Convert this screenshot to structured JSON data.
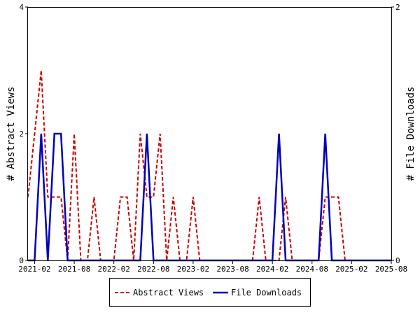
{
  "chart_data": {
    "type": "line",
    "x_unit": "month",
    "x": [
      "2021-01",
      "2021-02",
      "2021-03",
      "2021-04",
      "2021-05",
      "2021-06",
      "2021-07",
      "2021-08",
      "2021-09",
      "2021-10",
      "2021-11",
      "2021-12",
      "2022-01",
      "2022-02",
      "2022-03",
      "2022-04",
      "2022-05",
      "2022-06",
      "2022-07",
      "2022-08",
      "2022-09",
      "2022-10",
      "2022-11",
      "2022-12",
      "2023-01",
      "2023-02",
      "2023-03",
      "2023-04",
      "2023-05",
      "2023-06",
      "2023-07",
      "2023-08",
      "2023-09",
      "2023-10",
      "2023-11",
      "2023-12",
      "2024-01",
      "2024-02",
      "2024-03",
      "2024-04",
      "2024-05",
      "2024-06",
      "2024-07",
      "2024-08",
      "2024-09",
      "2024-10",
      "2024-11",
      "2024-12",
      "2025-01",
      "2025-02",
      "2025-03",
      "2025-04",
      "2025-05",
      "2025-06",
      "2025-07",
      "2025-08"
    ],
    "series": [
      {
        "name": "Abstract Views",
        "axis": "left",
        "color": "#cc0000",
        "style": "dashed",
        "values": [
          1,
          2,
          3,
          1,
          1,
          1,
          0,
          2,
          0,
          0,
          1,
          0,
          0,
          0,
          1,
          1,
          0,
          2,
          1,
          1,
          2,
          0,
          1,
          0,
          0,
          1,
          0,
          0,
          0,
          0,
          0,
          0,
          0,
          0,
          0,
          1,
          0,
          0,
          0,
          1,
          0,
          0,
          0,
          0,
          0,
          1,
          1,
          1,
          0,
          0,
          0,
          0,
          0,
          0,
          0,
          0
        ]
      },
      {
        "name": "File Downloads",
        "axis": "right",
        "color": "#0000bb",
        "style": "solid",
        "values": [
          0,
          0,
          1,
          0,
          1,
          1,
          0,
          0,
          0,
          0,
          0,
          0,
          0,
          0,
          0,
          0,
          0,
          0,
          1,
          0,
          0,
          0,
          0,
          0,
          0,
          0,
          0,
          0,
          0,
          0,
          0,
          0,
          0,
          0,
          0,
          0,
          0,
          0,
          1,
          0,
          0,
          0,
          0,
          0,
          0,
          1,
          0,
          0,
          0,
          0,
          0,
          0,
          0,
          0,
          0,
          0
        ]
      }
    ],
    "x_ticks": [
      "2021-02",
      "2021-08",
      "2022-02",
      "2022-08",
      "2023-02",
      "2023-08",
      "2024-02",
      "2024-08",
      "2025-02",
      "2025-08"
    ],
    "y_left": {
      "label": "# Abstract Views",
      "range": [
        0,
        4
      ],
      "ticks": [
        "0",
        "2",
        "4"
      ]
    },
    "y_right": {
      "label": "# File Downloads",
      "range": [
        0,
        2
      ],
      "ticks": [
        "0",
        "2"
      ]
    },
    "grid": false,
    "legend_position": "bottom-center",
    "legend": [
      {
        "label": "Abstract Views",
        "color": "#cc0000",
        "style": "dashed"
      },
      {
        "label": "File Downloads",
        "color": "#0000bb",
        "style": "solid"
      }
    ]
  }
}
